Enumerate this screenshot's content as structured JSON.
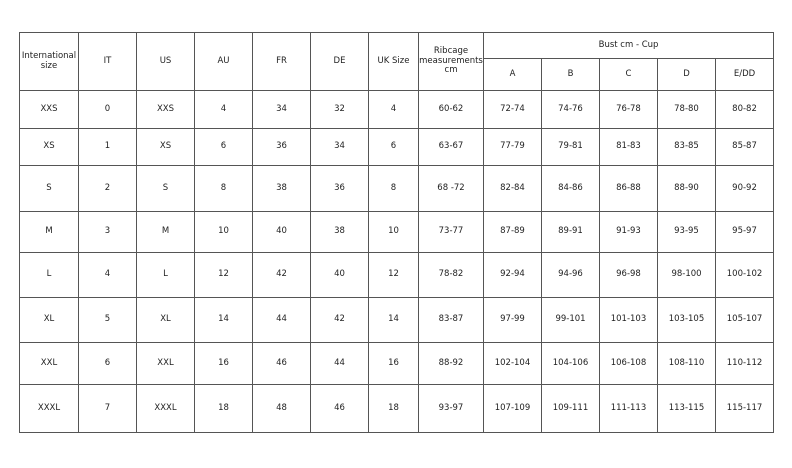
{
  "headers": {
    "international": "International size",
    "it": "IT",
    "us": "US",
    "au": "AU",
    "fr": "FR",
    "de": "DE",
    "uk": "UK Size",
    "ribcage": "Ribcage measurements cm",
    "bust": "Bust cm - Cup",
    "cups": [
      "A",
      "B",
      "C",
      "D",
      "E/DD"
    ]
  },
  "rows": [
    [
      "XXS",
      "0",
      "XXS",
      "4",
      "34",
      "32",
      "4",
      "60-62",
      "72-74",
      "74-76",
      "76-78",
      "78-80",
      "80-82"
    ],
    [
      "XS",
      "1",
      "XS",
      "6",
      "36",
      "34",
      "6",
      "63-67",
      "77-79",
      "79-81",
      "81-83",
      "83-85",
      "85-87"
    ],
    [
      "S",
      "2",
      "S",
      "8",
      "38",
      "36",
      "8",
      "68 -72",
      "82-84",
      "84-86",
      "86-88",
      "88-90",
      "90-92"
    ],
    [
      "M",
      "3",
      "M",
      "10",
      "40",
      "38",
      "10",
      "73-77",
      "87-89",
      "89-91",
      "91-93",
      "93-95",
      "95-97"
    ],
    [
      "L",
      "4",
      "L",
      "12",
      "42",
      "40",
      "12",
      "78-82",
      "92-94",
      "94-96",
      "96-98",
      "98-100",
      "100-102"
    ],
    [
      "XL",
      "5",
      "XL",
      "14",
      "44",
      "42",
      "14",
      "83-87",
      "97-99",
      "99-101",
      "101-103",
      "103-105",
      "105-107"
    ],
    [
      "XXL",
      "6",
      "XXL",
      "16",
      "46",
      "44",
      "16",
      "88-92",
      "102-104",
      "104-106",
      "106-108",
      "108-110",
      "110-112"
    ],
    [
      "XXXL",
      "7",
      "XXXL",
      "18",
      "48",
      "46",
      "18",
      "93-97",
      "107-109",
      "109-111",
      "111-113",
      "113-115",
      "115-117"
    ]
  ]
}
